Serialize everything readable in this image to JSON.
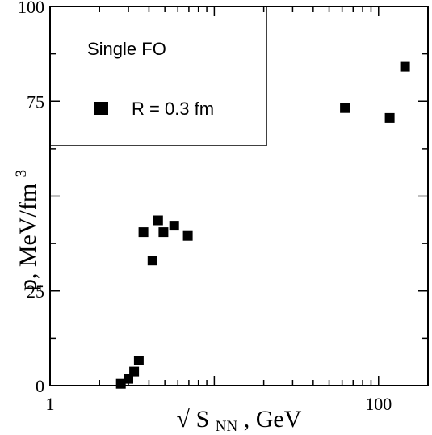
{
  "chart_data": {
    "type": "scatter",
    "x_scale": "log",
    "xlim": [
      1,
      200
    ],
    "ylim": [
      0,
      100
    ],
    "x_ticks": [
      {
        "value": 1,
        "label": "1"
      },
      {
        "value": 100,
        "label": "100"
      }
    ],
    "y_ticks": [
      {
        "value": 0,
        "label": "0"
      },
      {
        "value": 25,
        "label": "25"
      },
      {
        "value": 75,
        "label": "75"
      },
      {
        "value": 100,
        "label": "100"
      }
    ],
    "xlabel": {
      "radical": "√",
      "symbol": "S",
      "subscript": "NN",
      "unit": ", GeV"
    },
    "ylabel": {
      "text": "p, MeV/fm",
      "superscript": "3"
    },
    "legend": {
      "title": "Single FO",
      "position": "top-left",
      "entries": [
        {
          "label": "R = 0.3 fm",
          "marker": "square"
        }
      ]
    },
    "grid": false,
    "series": [
      {
        "marker": "square",
        "color": "#000000",
        "points": [
          {
            "x": 2.7,
            "y": 0.5
          },
          {
            "x": 3.0,
            "y": 1.8
          },
          {
            "x": 3.25,
            "y": 3.7
          },
          {
            "x": 3.47,
            "y": 6.6
          },
          {
            "x": 3.7,
            "y": 40.5
          },
          {
            "x": 4.2,
            "y": 33.0
          },
          {
            "x": 4.55,
            "y": 43.6
          },
          {
            "x": 4.9,
            "y": 40.5
          },
          {
            "x": 5.7,
            "y": 42.2
          },
          {
            "x": 6.9,
            "y": 39.5
          },
          {
            "x": 62.4,
            "y": 73.2
          },
          {
            "x": 117,
            "y": 70.6
          },
          {
            "x": 145,
            "y": 84.1
          }
        ]
      }
    ]
  }
}
